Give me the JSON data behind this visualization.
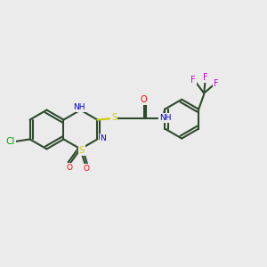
{
  "background_color": "#EBEBEB",
  "bond_color": "#2d4a2d",
  "bond_width": 1.5,
  "atom_colors": {
    "N": "#0000CC",
    "O": "#FF0000",
    "S_thiadiazine": "#CCCC00",
    "S_thio": "#CCCC00",
    "Cl": "#00AA00",
    "F": "#FF00FF",
    "C": "#2d4a2d",
    "H_label": "#4a7a7a",
    "NH_label": "#0000CC"
  },
  "figsize": [
    3.0,
    3.0
  ],
  "dpi": 100
}
